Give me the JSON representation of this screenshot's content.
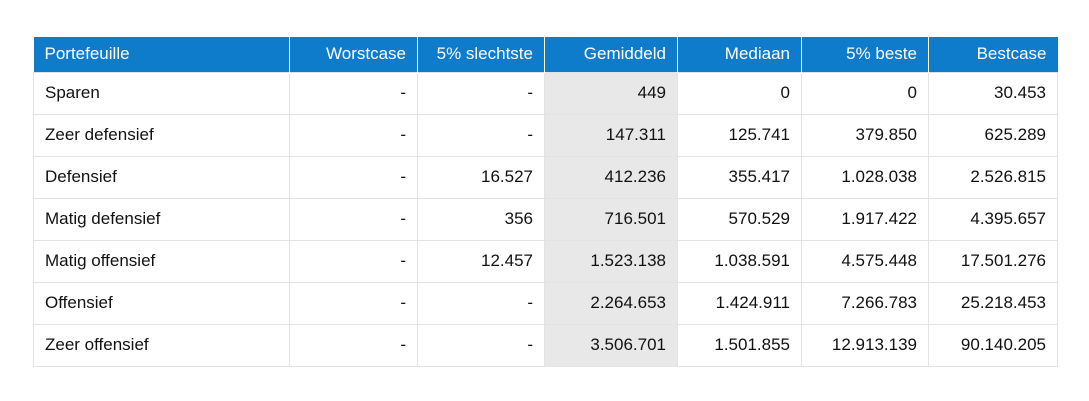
{
  "colors": {
    "header_bg": "#0f7bcb",
    "header_text": "#ffffff",
    "highlight_column_bg": "#e8e8e8",
    "grid_line": "#e3e3e3",
    "body_text": "#111111"
  },
  "table": {
    "columns": [
      {
        "label": "Portefeuille",
        "align": "left",
        "highlight": false
      },
      {
        "label": "Worstcase",
        "align": "right",
        "highlight": false
      },
      {
        "label": "5% slechtste",
        "align": "right",
        "highlight": false
      },
      {
        "label": "Gemiddeld",
        "align": "right",
        "highlight": true
      },
      {
        "label": "Mediaan",
        "align": "right",
        "highlight": false
      },
      {
        "label": "5% beste",
        "align": "right",
        "highlight": false
      },
      {
        "label": "Bestcase",
        "align": "right",
        "highlight": false
      }
    ],
    "rows": [
      [
        "Sparen",
        "-",
        "-",
        "449",
        "0",
        "0",
        "30.453"
      ],
      [
        "Zeer defensief",
        "-",
        "-",
        "147.311",
        "125.741",
        "379.850",
        "625.289"
      ],
      [
        "Defensief",
        "-",
        "16.527",
        "412.236",
        "355.417",
        "1.028.038",
        "2.526.815"
      ],
      [
        "Matig defensief",
        "-",
        "356",
        "716.501",
        "570.529",
        "1.917.422",
        "4.395.657"
      ],
      [
        "Matig offensief",
        "-",
        "12.457",
        "1.523.138",
        "1.038.591",
        "4.575.448",
        "17.501.276"
      ],
      [
        "Offensief",
        "-",
        "-",
        "2.264.653",
        "1.424.911",
        "7.266.783",
        "25.218.453"
      ],
      [
        "Zeer offensief",
        "-",
        "-",
        "3.506.701",
        "1.501.855",
        "12.913.139",
        "90.140.205"
      ]
    ]
  }
}
